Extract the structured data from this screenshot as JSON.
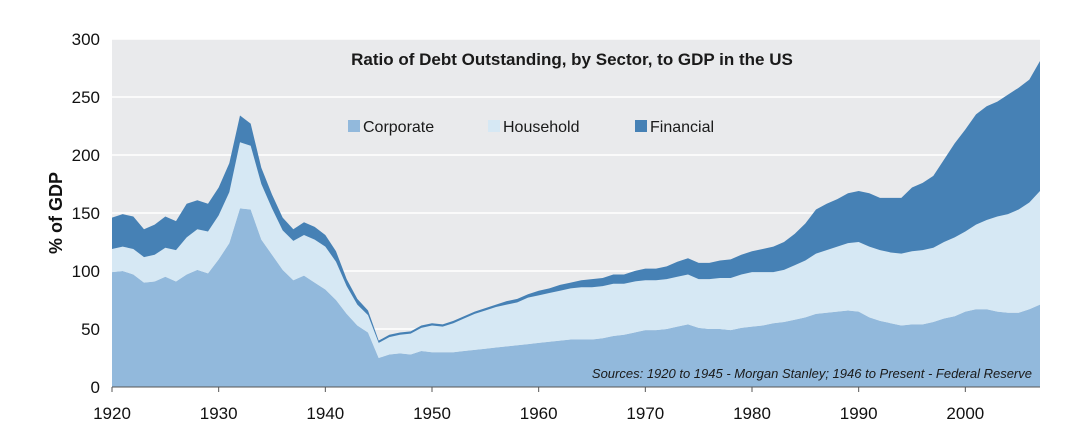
{
  "chart_data": {
    "type": "area",
    "stacked": true,
    "title": "Ratio of Debt Outstanding, by Sector, to GDP in the US",
    "ylabel": "% of GDP",
    "xlabel": "",
    "xlim": [
      1920,
      2007
    ],
    "ylim": [
      0,
      300
    ],
    "grid": true,
    "legend_position": "top-center",
    "annotation": "Sources: 1920 to 1945 - Morgan Stanley; 1946 to Present - Federal Reserve",
    "x_ticks": [
      "1920",
      "1930",
      "1940",
      "1950",
      "1960",
      "1970",
      "1980",
      "1990",
      "2000"
    ],
    "y_ticks": [
      "0",
      "50",
      "100",
      "150",
      "200",
      "250",
      "300"
    ],
    "x": [
      1920,
      1921,
      1922,
      1923,
      1924,
      1925,
      1926,
      1927,
      1928,
      1929,
      1930,
      1931,
      1932,
      1933,
      1934,
      1935,
      1936,
      1937,
      1938,
      1939,
      1940,
      1941,
      1942,
      1943,
      1944,
      1945,
      1946,
      1947,
      1948,
      1949,
      1950,
      1951,
      1952,
      1953,
      1954,
      1955,
      1956,
      1957,
      1958,
      1959,
      1960,
      1961,
      1962,
      1963,
      1964,
      1965,
      1966,
      1967,
      1968,
      1969,
      1970,
      1971,
      1972,
      1973,
      1974,
      1975,
      1976,
      1977,
      1978,
      1979,
      1980,
      1981,
      1982,
      1983,
      1984,
      1985,
      1986,
      1987,
      1988,
      1989,
      1990,
      1991,
      1992,
      1993,
      1994,
      1995,
      1996,
      1997,
      1998,
      1999,
      2000,
      2001,
      2002,
      2003,
      2004,
      2005,
      2006,
      2007
    ],
    "series": [
      {
        "name": "Corporate",
        "color": "#92b9dc",
        "values": [
          99,
          100,
          97,
          90,
          91,
          95,
          91,
          97,
          101,
          98,
          110,
          124,
          154,
          153,
          127,
          114,
          101,
          92,
          96,
          90,
          84,
          75,
          63,
          53,
          47,
          25,
          28,
          29,
          28,
          31,
          30,
          30,
          30,
          31,
          32,
          33,
          34,
          35,
          36,
          37,
          38,
          39,
          40,
          41,
          41,
          41,
          42,
          44,
          45,
          47,
          49,
          49,
          50,
          52,
          54,
          51,
          50,
          50,
          49,
          51,
          52,
          53,
          55,
          56,
          58,
          60,
          63,
          64,
          65,
          66,
          65,
          60,
          57,
          55,
          53,
          54,
          54,
          56,
          59,
          61,
          65,
          67,
          67,
          65,
          64,
          64,
          67,
          71
        ]
      },
      {
        "name": "Household",
        "color": "#d6e8f4",
        "values": [
          20,
          21,
          22,
          22,
          23,
          25,
          27,
          32,
          35,
          36,
          38,
          44,
          57,
          55,
          48,
          40,
          34,
          34,
          35,
          37,
          37,
          33,
          24,
          18,
          15,
          13,
          15,
          16,
          18,
          20,
          23,
          22,
          25,
          28,
          31,
          33,
          35,
          36,
          37,
          40,
          41,
          42,
          43,
          44,
          45,
          45,
          45,
          45,
          44,
          44,
          43,
          43,
          43,
          43,
          43,
          42,
          43,
          44,
          45,
          46,
          47,
          46,
          44,
          45,
          47,
          49,
          52,
          54,
          56,
          58,
          60,
          61,
          61,
          61,
          62,
          63,
          64,
          64,
          66,
          68,
          69,
          73,
          77,
          82,
          85,
          89,
          92,
          98
        ]
      },
      {
        "name": "Financial",
        "color": "#4681b5",
        "values": [
          27,
          28,
          28,
          24,
          26,
          27,
          25,
          29,
          25,
          24,
          24,
          25,
          23,
          19,
          14,
          12,
          11,
          10,
          11,
          11,
          10,
          9,
          6,
          5,
          4,
          2,
          2,
          2,
          2,
          2,
          2,
          2,
          2,
          2,
          2,
          2,
          2,
          3,
          3,
          3,
          4,
          4,
          5,
          5,
          6,
          7,
          7,
          8,
          8,
          9,
          10,
          10,
          11,
          13,
          14,
          14,
          14,
          15,
          16,
          17,
          18,
          20,
          22,
          24,
          27,
          32,
          38,
          40,
          41,
          43,
          44,
          46,
          45,
          47,
          48,
          55,
          58,
          62,
          71,
          81,
          88,
          95,
          98,
          99,
          103,
          105,
          106,
          112
        ]
      }
    ]
  }
}
